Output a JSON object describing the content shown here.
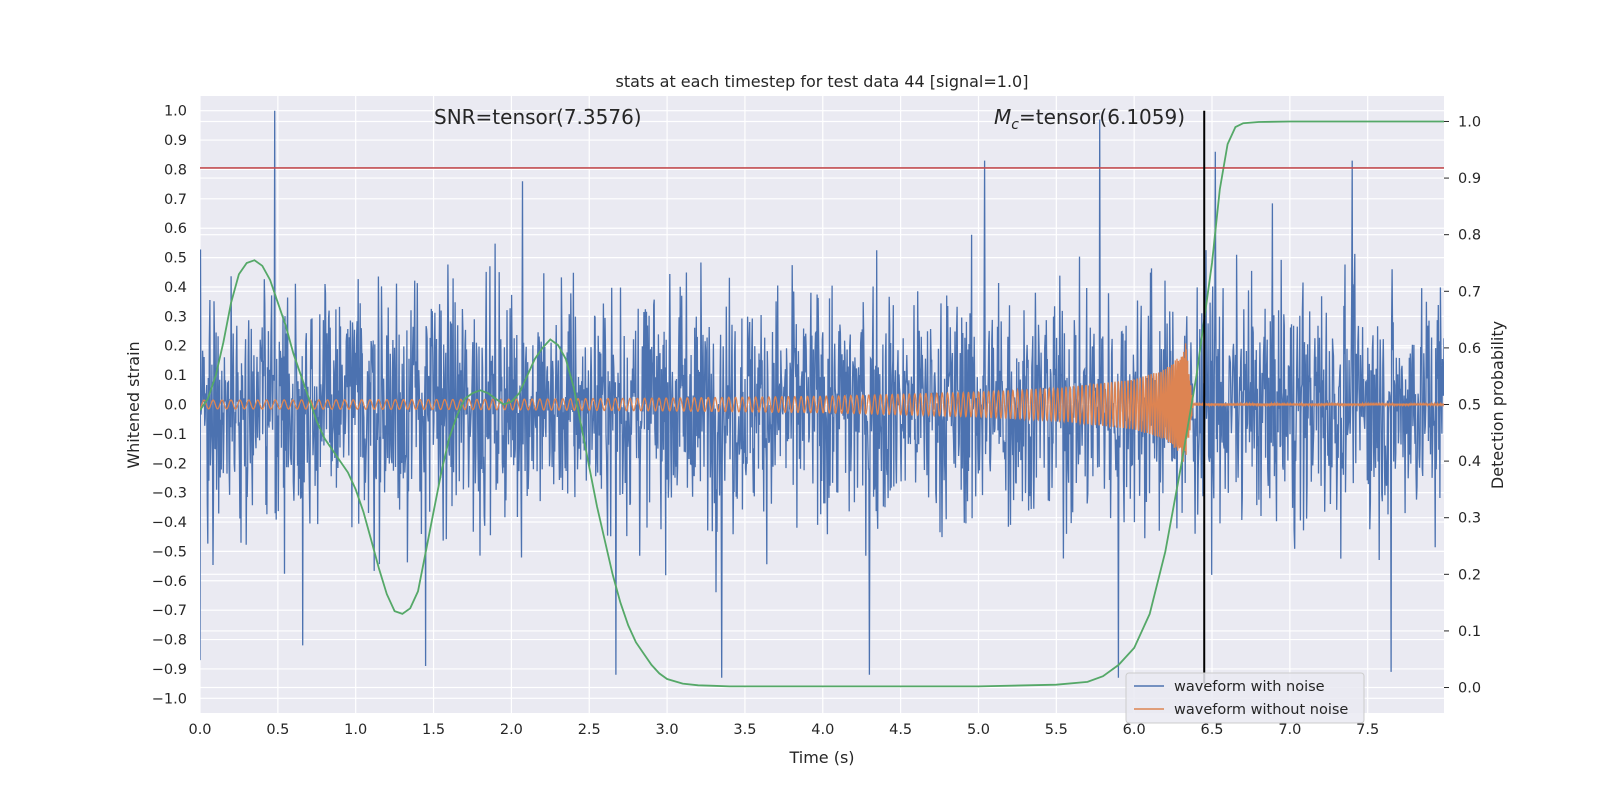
{
  "chart_data": {
    "type": "line",
    "title": "stats at each timestep for test data 44 [signal=1.0]",
    "xlabel": "Time (s)",
    "ylabel": "Whitened strain",
    "y2label": "Detection probability",
    "xlim": [
      0.0,
      7.99
    ],
    "ylim": [
      -1.05,
      1.05
    ],
    "y2lim": [
      -0.045,
      1.045
    ],
    "xticks": [
      "0.0",
      "0.5",
      "1.0",
      "1.5",
      "2.0",
      "2.5",
      "3.0",
      "3.5",
      "4.0",
      "4.5",
      "5.0",
      "5.5",
      "6.0",
      "6.5",
      "7.0",
      "7.5"
    ],
    "yticks": [
      "1.0",
      "0.9",
      "0.8",
      "0.7",
      "0.6",
      "0.5",
      "0.4",
      "0.3",
      "0.2",
      "0.1",
      "0.0",
      "−0.1",
      "−0.2",
      "−0.3",
      "−0.4",
      "−0.5",
      "−0.6",
      "−0.7",
      "−0.8",
      "−0.9",
      "−1.0"
    ],
    "y2ticks": [
      "1.0",
      "0.9",
      "0.8",
      "0.7",
      "0.6",
      "0.5",
      "0.4",
      "0.3",
      "0.2",
      "0.1",
      "0.0"
    ],
    "grid": true,
    "legend_position": "lower-right",
    "annotations": {
      "snr_text": "SNR=tensor(7.3576)",
      "mc_symbol": "M",
      "mc_subscript": "c",
      "mc_value": "=tensor(6.1059)"
    },
    "threshold_line": {
      "y": 0.805,
      "color": "#c44e52"
    },
    "merger_time_line": {
      "x": 6.45,
      "color": "#000000"
    },
    "series": [
      {
        "name": "waveform with noise",
        "color": "#4c72b0",
        "axis": "left",
        "noise_sigma": 0.2,
        "peaks": [
          {
            "x": 0.48,
            "y": 1.0
          },
          {
            "x": 5.78,
            "y": 0.97
          },
          {
            "x": 5.9,
            "y": 0.98
          },
          {
            "x": 6.52,
            "y": 0.86
          },
          {
            "x": 5.04,
            "y": 0.83
          },
          {
            "x": 7.4,
            "y": 0.83
          },
          {
            "x": 2.07,
            "y": 0.76
          },
          {
            "x": 1.45,
            "y": -0.89
          },
          {
            "x": 2.67,
            "y": -0.92
          },
          {
            "x": 3.35,
            "y": -0.93
          },
          {
            "x": 4.3,
            "y": -0.92
          },
          {
            "x": 7.65,
            "y": -0.91
          },
          {
            "x": 5.9,
            "y": -0.93
          },
          {
            "x": 0.66,
            "y": -0.82
          },
          {
            "x": 0.0,
            "y": -0.87
          }
        ]
      },
      {
        "name": "waveform without noise",
        "color": "#dd8452",
        "axis": "left",
        "envelope": {
          "x": [
            0.0,
            1.0,
            2.0,
            3.0,
            4.0,
            5.0,
            5.5,
            6.0,
            6.2,
            6.3,
            6.33,
            6.35,
            6.38,
            7.99
          ],
          "amp": [
            0.015,
            0.016,
            0.018,
            0.022,
            0.028,
            0.042,
            0.055,
            0.085,
            0.12,
            0.17,
            0.22,
            0.12,
            0.004,
            0.003
          ]
        }
      },
      {
        "name": "detection probability",
        "color": "#55a868",
        "axis": "right",
        "x": [
          0.0,
          0.05,
          0.1,
          0.15,
          0.2,
          0.25,
          0.3,
          0.35,
          0.4,
          0.45,
          0.5,
          0.55,
          0.6,
          0.65,
          0.7,
          0.75,
          0.8,
          0.85,
          0.9,
          0.95,
          1.0,
          1.05,
          1.1,
          1.15,
          1.2,
          1.25,
          1.3,
          1.35,
          1.4,
          1.45,
          1.5,
          1.55,
          1.6,
          1.65,
          1.7,
          1.75,
          1.8,
          1.85,
          1.9,
          1.95,
          2.0,
          2.05,
          2.1,
          2.15,
          2.2,
          2.25,
          2.3,
          2.35,
          2.4,
          2.45,
          2.5,
          2.55,
          2.6,
          2.65,
          2.7,
          2.75,
          2.8,
          2.85,
          2.9,
          2.95,
          3.0,
          3.1,
          3.2,
          3.3,
          3.4,
          3.6,
          3.8,
          4.0,
          4.5,
          5.0,
          5.5,
          5.7,
          5.8,
          5.9,
          6.0,
          6.1,
          6.2,
          6.3,
          6.4,
          6.45,
          6.5,
          6.55,
          6.6,
          6.65,
          6.7,
          6.8,
          7.0,
          7.5,
          7.99
        ],
        "y": [
          0.49,
          0.51,
          0.55,
          0.61,
          0.68,
          0.73,
          0.75,
          0.755,
          0.745,
          0.72,
          0.68,
          0.64,
          0.59,
          0.55,
          0.51,
          0.47,
          0.44,
          0.42,
          0.4,
          0.38,
          0.35,
          0.31,
          0.26,
          0.21,
          0.165,
          0.135,
          0.13,
          0.14,
          0.17,
          0.24,
          0.31,
          0.38,
          0.44,
          0.48,
          0.51,
          0.52,
          0.525,
          0.52,
          0.51,
          0.5,
          0.505,
          0.52,
          0.55,
          0.58,
          0.6,
          0.615,
          0.605,
          0.58,
          0.53,
          0.46,
          0.39,
          0.32,
          0.26,
          0.2,
          0.15,
          0.11,
          0.08,
          0.06,
          0.04,
          0.025,
          0.015,
          0.007,
          0.004,
          0.003,
          0.002,
          0.002,
          0.002,
          0.002,
          0.002,
          0.002,
          0.005,
          0.01,
          0.02,
          0.04,
          0.07,
          0.13,
          0.24,
          0.39,
          0.55,
          0.65,
          0.75,
          0.88,
          0.96,
          0.99,
          0.997,
          0.999,
          1.0,
          1.0,
          1.0
        ]
      }
    ]
  }
}
